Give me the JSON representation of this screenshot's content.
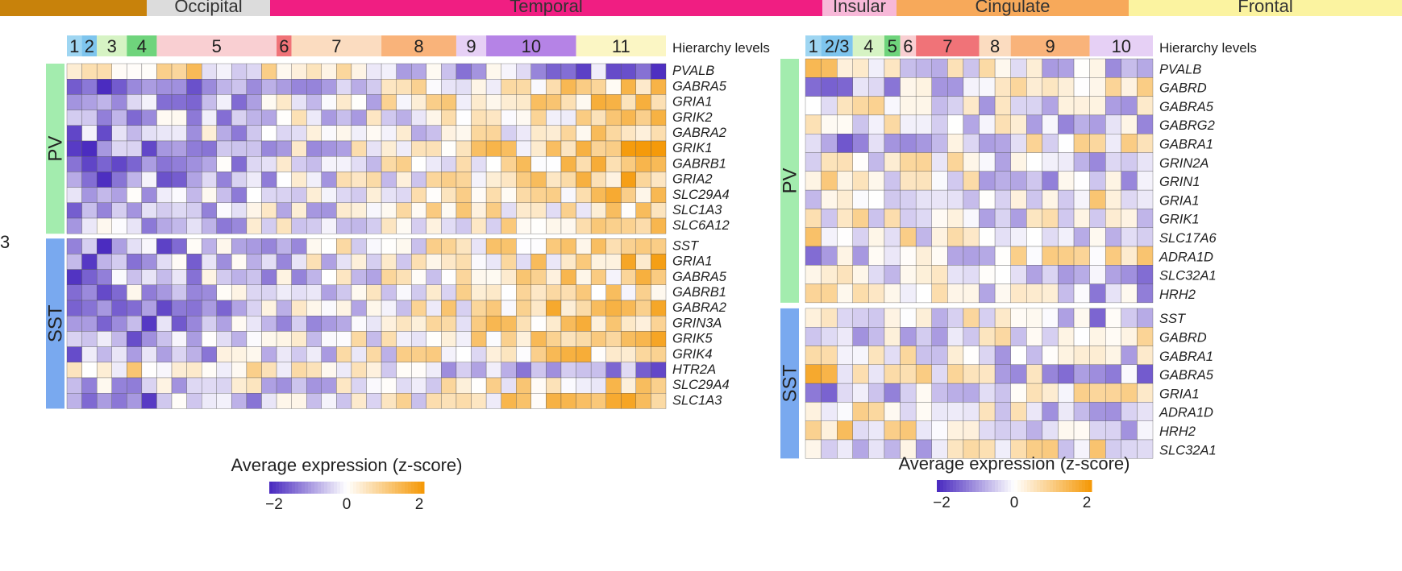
{
  "side_label": "3",
  "colors": {
    "low": "#4b2cc0",
    "mid": "#ffffff",
    "high": "#f59a0a"
  },
  "regions": [
    {
      "label": "",
      "color": "#c8820b"
    },
    {
      "label": "Occipital",
      "color": "#dcdcdc"
    },
    {
      "label": "Temporal",
      "color": "#f01e82"
    },
    {
      "label": "Insular",
      "color": "#f7b8d8"
    },
    {
      "label": "Cingulate",
      "color": "#f7a95a"
    },
    {
      "label": "Frontal",
      "color": "#fbf3a0"
    }
  ],
  "chart_data": [
    {
      "type": "heatmap",
      "panel": "left",
      "hierarchy_title": "Hierarchy levels",
      "levels": [
        {
          "label": "1",
          "color": "#9fd6f2",
          "columns": 1
        },
        {
          "label": "2",
          "color": "#7ec5ee",
          "columns": 1
        },
        {
          "label": "3",
          "color": "#d6f3c4",
          "columns": 2
        },
        {
          "label": "4",
          "color": "#6fd47c",
          "columns": 2
        },
        {
          "label": "5",
          "color": "#f9cfd2",
          "columns": 8
        },
        {
          "label": "6",
          "color": "#f07378",
          "columns": 1
        },
        {
          "label": "7",
          "color": "#fbdcc0",
          "columns": 6
        },
        {
          "label": "8",
          "color": "#f9b37a",
          "columns": 5
        },
        {
          "label": "9",
          "color": "#e6d0f5",
          "columns": 2
        },
        {
          "label": "10",
          "color": "#b583e6",
          "columns": 6
        },
        {
          "label": "11",
          "color": "#fbf6c4",
          "columns": 6
        }
      ],
      "groups": [
        {
          "label": "PV",
          "color": "#a3ecae",
          "genes": [
            "PVALB",
            "GABRA5",
            "GRIA1",
            "GRIK2",
            "GABRA2",
            "GRIK1",
            "GABRB1",
            "GRIA2",
            "SLC29A4",
            "SLC1A3",
            "SLC6A12"
          ]
        },
        {
          "label": "SST",
          "color": "#79a9ef",
          "genes": [
            "SST",
            "GRIA1",
            "GABRA5",
            "GABRB1",
            "GABRA2",
            "GRIN3A",
            "GRIK5",
            "GRIK4",
            "HTR2A",
            "SLC29A4",
            "SLC1A3"
          ]
        }
      ],
      "value_range": [
        -2,
        2
      ],
      "legend": {
        "title": "Average expression (z-score)",
        "ticks": [
          "−2",
          "0",
          "2"
        ]
      }
    },
    {
      "type": "heatmap",
      "panel": "right",
      "hierarchy_title": "Hierarchy levels",
      "levels": [
        {
          "label": "1",
          "color": "#9fd6f2",
          "columns": 1
        },
        {
          "label": "2/3",
          "color": "#7ec5ee",
          "columns": 2
        },
        {
          "label": "4",
          "color": "#d6f3c4",
          "columns": 2
        },
        {
          "label": "5",
          "color": "#6fd47c",
          "columns": 1
        },
        {
          "label": "6",
          "color": "#f9cfd2",
          "columns": 1
        },
        {
          "label": "7",
          "color": "#f07378",
          "columns": 4
        },
        {
          "label": "8",
          "color": "#fbdcc0",
          "columns": 2
        },
        {
          "label": "9",
          "color": "#f9b37a",
          "columns": 5
        },
        {
          "label": "10",
          "color": "#e6d0f5",
          "columns": 4
        }
      ],
      "groups": [
        {
          "label": "PV",
          "color": "#a3ecae",
          "genes": [
            "PVALB",
            "GABRD",
            "GABRA5",
            "GABRG2",
            "GABRA1",
            "GRIN2A",
            "GRIN1",
            "GRIA1",
            "GRIK1",
            "SLC17A6",
            "ADRA1D",
            "SLC32A1",
            "HRH2"
          ]
        },
        {
          "label": "SST",
          "color": "#79a9ef",
          "genes": [
            "SST",
            "GABRD",
            "GABRA1",
            "GABRA5",
            "GRIA1",
            "ADRA1D",
            "HRH2",
            "SLC32A1"
          ]
        }
      ],
      "value_range": [
        -2,
        2
      ],
      "legend": {
        "title": "Average expression (z-score)",
        "ticks": [
          "−2",
          "0",
          "2"
        ]
      }
    }
  ]
}
